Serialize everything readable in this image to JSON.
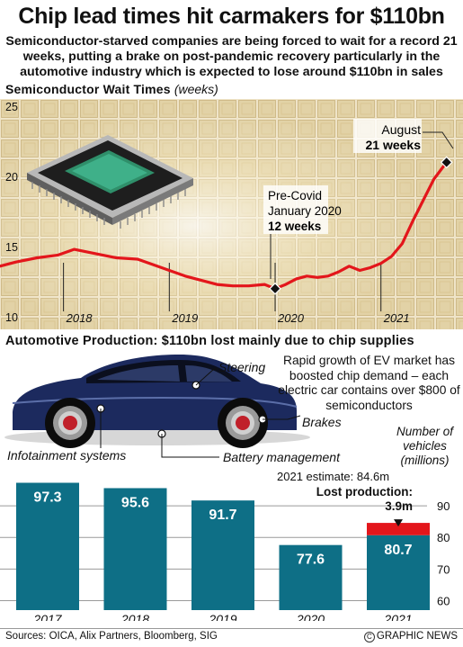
{
  "header": {
    "title": "Chip lead times hit carmakers for $110bn",
    "subtitle": "Semiconductor-starved companies are being forced to wait for a record 21 weeks, putting a brake on post-pandemic recovery particularly in the automotive industry which is expected to lose around $110bn in sales"
  },
  "wait_section": {
    "heading": "Semiconductor Wait Times",
    "unit": "(weeks)",
    "annotations": {
      "august_label": "August",
      "august_value": "21 weeks",
      "precovid_label_1": "Pre-Covid",
      "precovid_label_2": "January 2020",
      "precovid_value": "12 weeks"
    }
  },
  "prod_section": {
    "heading": "Automotive Production: $110bn lost mainly due to chip supplies",
    "ev_note": "Rapid growth of EV market has boosted chip demand – each electric car contains over $800 of semiconductors",
    "parts": {
      "steering": "Steering",
      "brakes": "Brakes",
      "infotainment": "Infotainment systems",
      "battery": "Battery management"
    },
    "units_note": "Number of vehicles (millions)",
    "estimate_note": "2021 estimate: 84.6m",
    "lost_label": "Lost production:",
    "lost_value": "3.9m"
  },
  "footer": {
    "sources": "Sources: OICA, Alix Partners, Bloomberg, SIG",
    "credit": "GRAPHIC NEWS"
  },
  "colors": {
    "line": "#e3161b",
    "bar": "#0e6f86",
    "lost": "#e3161b",
    "car_body": "#1c2a5e",
    "background_tint": "#efe4c8"
  },
  "chart_data": [
    {
      "type": "line",
      "title": "Semiconductor Wait Times",
      "ylabel": "(weeks)",
      "ylim": [
        10,
        25
      ],
      "yticks": [
        10,
        15,
        20,
        25
      ],
      "xticks": [
        "2018",
        "2019",
        "2020",
        "2021"
      ],
      "xlim": [
        2017.4,
        2021.75
      ],
      "grid": false,
      "series": [
        {
          "x": [
            2017.4,
            2017.55,
            2017.75,
            2017.95,
            2018.1,
            2018.3,
            2018.5,
            2018.7,
            2018.85,
            2019.0,
            2019.15,
            2019.3,
            2019.45,
            2019.6,
            2019.75,
            2019.9,
            2020.0,
            2020.1,
            2020.2,
            2020.3,
            2020.4,
            2020.5,
            2020.6,
            2020.7,
            2020.8,
            2020.9,
            2021.0,
            2021.1,
            2021.2,
            2021.3,
            2021.4,
            2021.5,
            2021.62
          ],
          "y": [
            13.6,
            13.9,
            14.2,
            14.4,
            14.8,
            14.5,
            14.2,
            14.1,
            13.7,
            13.3,
            12.9,
            12.6,
            12.3,
            12.2,
            12.2,
            12.3,
            12.0,
            12.3,
            12.7,
            12.9,
            12.8,
            12.9,
            13.2,
            13.6,
            13.3,
            13.5,
            13.8,
            14.3,
            15.2,
            16.8,
            18.3,
            19.8,
            21.0
          ]
        }
      ],
      "highlights": [
        {
          "x": 2020.0,
          "y": 12.0
        },
        {
          "x": 2021.62,
          "y": 21.0
        }
      ]
    },
    {
      "type": "bar",
      "ylabel": "Number of vehicles (millions)",
      "categories": [
        "2017",
        "2018",
        "2019",
        "2020",
        "2021"
      ],
      "values": [
        97.3,
        95.6,
        91.7,
        77.6,
        80.7
      ],
      "ylim": [
        57,
        102
      ],
      "yticks": [
        60,
        70,
        80,
        90
      ],
      "stacked_extra": {
        "category": "2021",
        "value": 3.9,
        "total": 84.6
      }
    }
  ]
}
